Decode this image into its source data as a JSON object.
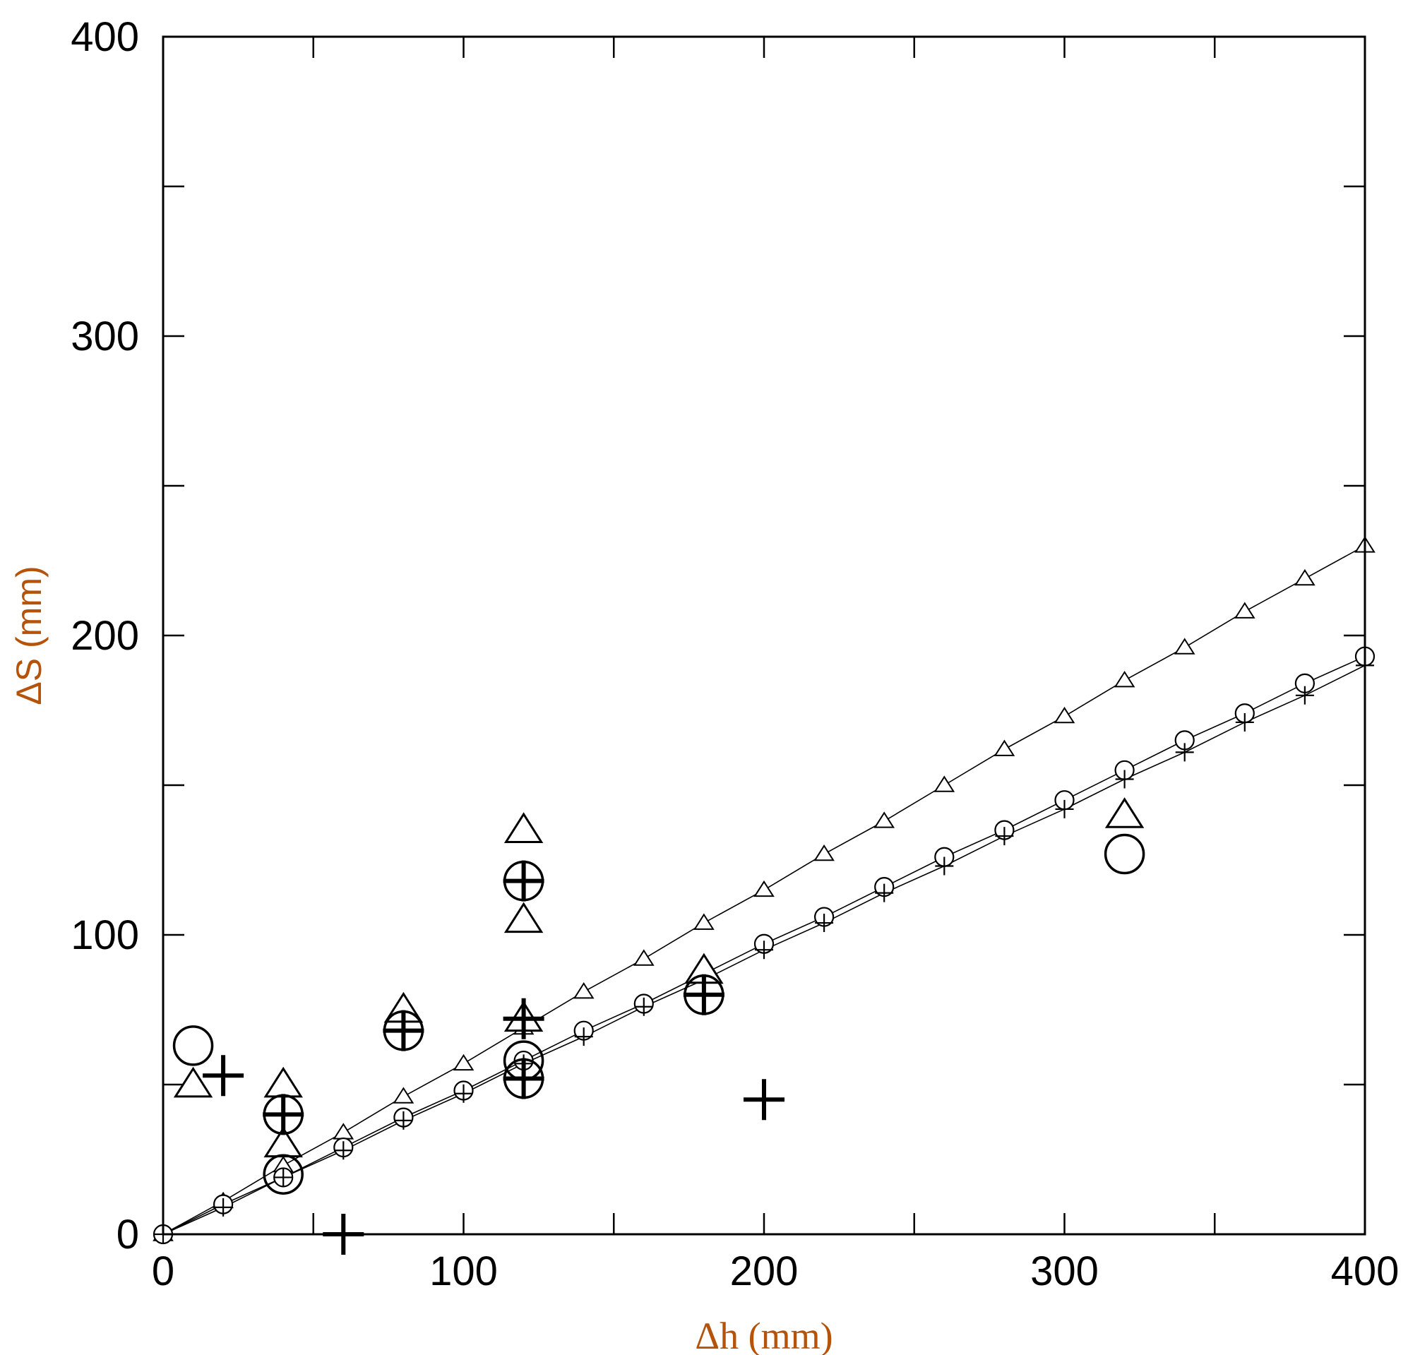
{
  "chart_data": {
    "type": "scatter",
    "xlabel": "Δh (mm)",
    "ylabel": "ΔS (mm)",
    "xlim": [
      0,
      400
    ],
    "ylim": [
      0,
      400
    ],
    "x_ticks": [
      0,
      100,
      200,
      300,
      400
    ],
    "y_ticks": [
      0,
      100,
      200,
      300,
      400
    ],
    "x_tick_labels": [
      "0",
      "100",
      "200",
      "300",
      "400"
    ],
    "y_tick_labels": [
      "0",
      "100",
      "200",
      "300",
      "400"
    ],
    "grid": false,
    "colors": {
      "axis_title": "#b45309",
      "ink": "#000000"
    },
    "series": [
      {
        "style": "line-triangle",
        "x": [
          0,
          20,
          40,
          60,
          80,
          100,
          120,
          140,
          160,
          180,
          200,
          220,
          240,
          260,
          280,
          300,
          320,
          340,
          360,
          380,
          400
        ],
        "y": [
          0,
          11,
          23,
          34,
          46,
          57,
          69,
          81,
          92,
          104,
          115,
          127,
          138,
          150,
          162,
          173,
          185,
          196,
          208,
          219,
          230
        ]
      },
      {
        "style": "line-circle",
        "x": [
          0,
          20,
          40,
          60,
          80,
          100,
          120,
          140,
          160,
          180,
          200,
          220,
          240,
          260,
          280,
          300,
          320,
          340,
          360,
          380,
          400
        ],
        "y": [
          0,
          10,
          19,
          29,
          39,
          48,
          58,
          68,
          77,
          87,
          97,
          106,
          116,
          126,
          135,
          145,
          155,
          165,
          174,
          184,
          193
        ]
      },
      {
        "style": "line-plus",
        "x": [
          0,
          20,
          40,
          60,
          80,
          100,
          120,
          140,
          160,
          180,
          200,
          220,
          240,
          260,
          280,
          300,
          320,
          340,
          360,
          380,
          400
        ],
        "y": [
          0,
          9,
          19,
          28,
          38,
          47,
          57,
          66,
          76,
          85,
          95,
          104,
          114,
          123,
          133,
          142,
          152,
          161,
          171,
          180,
          190
        ]
      },
      {
        "style": "triangle",
        "x": [
          10,
          40,
          40,
          80,
          120,
          120,
          120,
          180,
          320
        ],
        "y": [
          50,
          50,
          30,
          75,
          135,
          105,
          72,
          88,
          140
        ]
      },
      {
        "style": "circle",
        "x": [
          10,
          40,
          40,
          80,
          120,
          120,
          120,
          180,
          320
        ],
        "y": [
          63,
          40,
          20,
          68,
          118,
          58,
          52,
          80,
          127
        ]
      },
      {
        "style": "plus",
        "x": [
          20,
          40,
          60,
          80,
          120,
          120,
          120,
          180,
          200
        ],
        "y": [
          53,
          40,
          0,
          68,
          118,
          72,
          52,
          80,
          45
        ]
      }
    ]
  }
}
